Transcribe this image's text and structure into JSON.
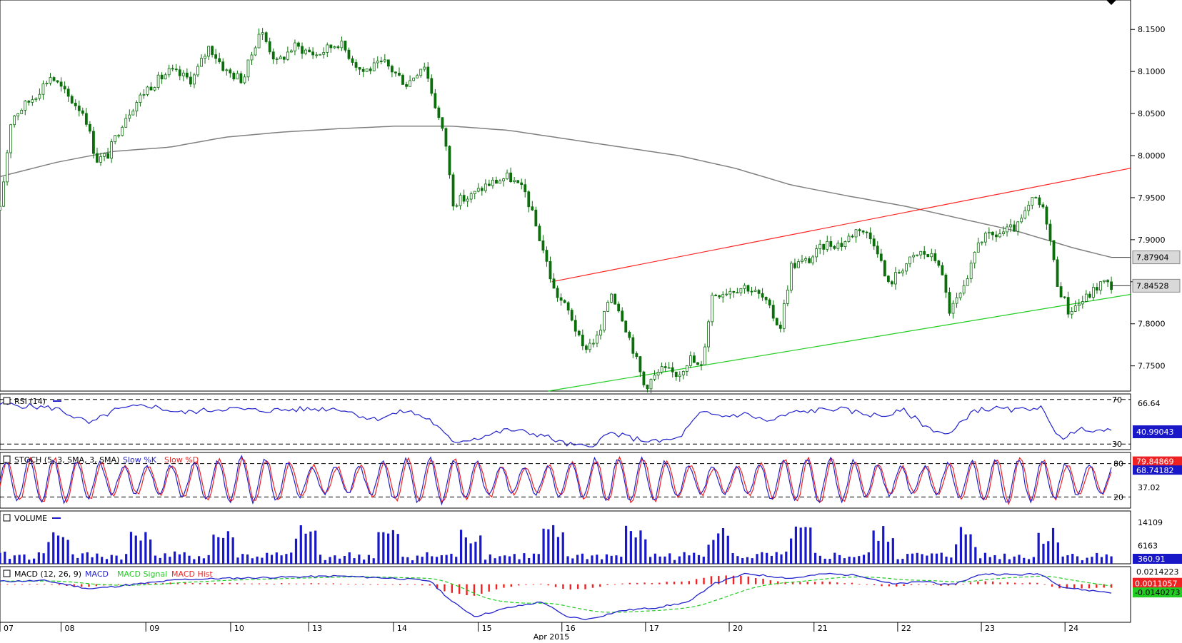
{
  "colors": {
    "candle": "#0a6e0a",
    "ma": "#808080",
    "resistance": "#ff2222",
    "support": "#22cc22",
    "rsi": "#2222cc",
    "stoch_k": "#2222cc",
    "stoch_d": "#ee2222",
    "volume": "#1818c8",
    "macd": "#2222cc",
    "macd_signal": "#22cc22",
    "macd_hist": "#ee2222",
    "grid": "#000000"
  },
  "chart_data": [
    {
      "type": "candlestick",
      "name": "price",
      "ylim": [
        7.72,
        8.185
      ],
      "yticks": [
        "8.1500",
        "8.1000",
        "8.0500",
        "8.0000",
        "7.9500",
        "7.9000",
        "7.8500",
        "7.8000",
        "7.7500"
      ],
      "price_tags": {
        "ma": "7.87904",
        "last": "7.84528"
      },
      "trendlines": {
        "resistance": {
          "from": [
            0.488,
            7.85
          ],
          "to": [
            1.0,
            7.985
          ]
        },
        "support": {
          "from": [
            0.485,
            7.72
          ],
          "to": [
            1.0,
            7.835
          ]
        }
      },
      "anchors": [
        [
          0.0,
          7.935
        ],
        [
          0.01,
          8.045
        ],
        [
          0.03,
          8.07
        ],
        [
          0.045,
          8.095
        ],
        [
          0.06,
          8.07
        ],
        [
          0.075,
          8.05
        ],
        [
          0.085,
          7.995
        ],
        [
          0.095,
          8.0
        ],
        [
          0.11,
          8.045
        ],
        [
          0.13,
          8.08
        ],
        [
          0.15,
          8.1
        ],
        [
          0.17,
          8.09
        ],
        [
          0.185,
          8.13
        ],
        [
          0.2,
          8.1
        ],
        [
          0.215,
          8.09
        ],
        [
          0.23,
          8.15
        ],
        [
          0.245,
          8.11
        ],
        [
          0.26,
          8.13
        ],
        [
          0.28,
          8.12
        ],
        [
          0.3,
          8.135
        ],
        [
          0.32,
          8.1
        ],
        [
          0.34,
          8.11
        ],
        [
          0.36,
          8.085
        ],
        [
          0.375,
          8.11
        ],
        [
          0.385,
          8.06
        ],
        [
          0.395,
          8.01
        ],
        [
          0.4,
          7.945
        ],
        [
          0.415,
          7.95
        ],
        [
          0.43,
          7.965
        ],
        [
          0.45,
          7.975
        ],
        [
          0.465,
          7.955
        ],
        [
          0.48,
          7.89
        ],
        [
          0.49,
          7.84
        ],
        [
          0.505,
          7.81
        ],
        [
          0.515,
          7.77
        ],
        [
          0.53,
          7.785
        ],
        [
          0.54,
          7.84
        ],
        [
          0.55,
          7.81
        ],
        [
          0.56,
          7.77
        ],
        [
          0.57,
          7.725
        ],
        [
          0.585,
          7.745
        ],
        [
          0.6,
          7.74
        ],
        [
          0.61,
          7.76
        ],
        [
          0.62,
          7.745
        ],
        [
          0.63,
          7.835
        ],
        [
          0.645,
          7.84
        ],
        [
          0.66,
          7.845
        ],
        [
          0.675,
          7.83
        ],
        [
          0.69,
          7.795
        ],
        [
          0.7,
          7.87
        ],
        [
          0.715,
          7.875
        ],
        [
          0.73,
          7.895
        ],
        [
          0.745,
          7.895
        ],
        [
          0.76,
          7.915
        ],
        [
          0.775,
          7.895
        ],
        [
          0.785,
          7.845
        ],
        [
          0.8,
          7.87
        ],
        [
          0.815,
          7.885
        ],
        [
          0.83,
          7.875
        ],
        [
          0.84,
          7.815
        ],
        [
          0.855,
          7.845
        ],
        [
          0.865,
          7.9
        ],
        [
          0.88,
          7.905
        ],
        [
          0.9,
          7.915
        ],
        [
          0.915,
          7.95
        ],
        [
          0.925,
          7.93
        ],
        [
          0.935,
          7.85
        ],
        [
          0.945,
          7.815
        ],
        [
          0.96,
          7.83
        ],
        [
          0.975,
          7.85
        ],
        [
          0.983,
          7.845
        ]
      ],
      "ma_anchors": [
        [
          0.0,
          7.975
        ],
        [
          0.05,
          7.992
        ],
        [
          0.1,
          8.005
        ],
        [
          0.15,
          8.01
        ],
        [
          0.2,
          8.022
        ],
        [
          0.25,
          8.028
        ],
        [
          0.3,
          8.032
        ],
        [
          0.35,
          8.035
        ],
        [
          0.4,
          8.035
        ],
        [
          0.45,
          8.03
        ],
        [
          0.5,
          8.02
        ],
        [
          0.55,
          8.01
        ],
        [
          0.6,
          8.0
        ],
        [
          0.65,
          7.985
        ],
        [
          0.7,
          7.965
        ],
        [
          0.75,
          7.952
        ],
        [
          0.8,
          7.94
        ],
        [
          0.85,
          7.925
        ],
        [
          0.9,
          7.91
        ],
        [
          0.95,
          7.89
        ],
        [
          0.983,
          7.879
        ]
      ]
    },
    {
      "type": "line",
      "name": "rsi",
      "title": "RSI (14)",
      "ylim": [
        25,
        75
      ],
      "levels": [
        "70",
        "30"
      ],
      "yticks": [
        "66.64"
      ],
      "last_value": "40.99043",
      "anchors": [
        [
          0.0,
          66
        ],
        [
          0.05,
          62
        ],
        [
          0.08,
          48
        ],
        [
          0.1,
          60
        ],
        [
          0.13,
          65
        ],
        [
          0.16,
          58
        ],
        [
          0.2,
          62
        ],
        [
          0.23,
          60
        ],
        [
          0.26,
          61
        ],
        [
          0.3,
          62
        ],
        [
          0.33,
          52
        ],
        [
          0.36,
          60
        ],
        [
          0.38,
          52
        ],
        [
          0.4,
          32
        ],
        [
          0.42,
          35
        ],
        [
          0.45,
          43
        ],
        [
          0.48,
          38
        ],
        [
          0.5,
          30
        ],
        [
          0.52,
          27
        ],
        [
          0.54,
          40
        ],
        [
          0.56,
          35
        ],
        [
          0.58,
          32
        ],
        [
          0.6,
          35
        ],
        [
          0.62,
          58
        ],
        [
          0.64,
          55
        ],
        [
          0.66,
          57
        ],
        [
          0.68,
          50
        ],
        [
          0.7,
          58
        ],
        [
          0.72,
          60
        ],
        [
          0.74,
          62
        ],
        [
          0.76,
          58
        ],
        [
          0.78,
          55
        ],
        [
          0.8,
          60
        ],
        [
          0.82,
          45
        ],
        [
          0.84,
          38
        ],
        [
          0.86,
          60
        ],
        [
          0.88,
          62
        ],
        [
          0.9,
          60
        ],
        [
          0.92,
          64
        ],
        [
          0.93,
          45
        ],
        [
          0.94,
          36
        ],
        [
          0.96,
          44
        ],
        [
          0.983,
          41
        ]
      ]
    },
    {
      "type": "line",
      "name": "stochastic",
      "title": "STOCH (5, 3, SMA, 3, SMA)",
      "legend": [
        "Slow %K",
        "Slow %D"
      ],
      "ylim": [
        0,
        100
      ],
      "levels": [
        "80",
        "20"
      ],
      "yticks": [
        "37.02"
      ],
      "last_values": [
        "79.84869",
        "68.74182"
      ]
    },
    {
      "type": "bar",
      "name": "volume",
      "title": "VOLUME",
      "ylim": [
        0,
        18000
      ],
      "yticks": [
        "14109",
        "6163"
      ],
      "last_value": "360.91"
    },
    {
      "type": "line",
      "name": "macd",
      "title": "MACD (12, 26, 9)",
      "legend": [
        "MACD",
        "MACD Signal",
        "MACD Hist"
      ],
      "ylim": [
        -0.065,
        0.03
      ],
      "yticks": [
        "0.0214223"
      ],
      "last_values": [
        "0.0011057",
        "-0.0140273"
      ],
      "anchors": [
        [
          0.0,
          0.005
        ],
        [
          0.04,
          0.006
        ],
        [
          0.08,
          -0.008
        ],
        [
          0.12,
          0.0
        ],
        [
          0.16,
          0.008
        ],
        [
          0.2,
          0.01
        ],
        [
          0.25,
          0.012
        ],
        [
          0.3,
          0.014
        ],
        [
          0.35,
          0.01
        ],
        [
          0.38,
          0.006
        ],
        [
          0.4,
          -0.03
        ],
        [
          0.42,
          -0.055
        ],
        [
          0.45,
          -0.04
        ],
        [
          0.48,
          -0.03
        ],
        [
          0.5,
          -0.055
        ],
        [
          0.52,
          -0.06
        ],
        [
          0.55,
          -0.045
        ],
        [
          0.58,
          -0.04
        ],
        [
          0.61,
          -0.03
        ],
        [
          0.63,
          0.0
        ],
        [
          0.66,
          0.018
        ],
        [
          0.7,
          0.01
        ],
        [
          0.73,
          0.018
        ],
        [
          0.76,
          0.015
        ],
        [
          0.79,
          0.0
        ],
        [
          0.82,
          0.005
        ],
        [
          0.84,
          -0.002
        ],
        [
          0.87,
          0.018
        ],
        [
          0.9,
          0.016
        ],
        [
          0.92,
          0.018
        ],
        [
          0.94,
          -0.005
        ],
        [
          0.96,
          -0.01
        ],
        [
          0.983,
          -0.014
        ]
      ]
    }
  ],
  "xaxis": {
    "days": [
      "07",
      "08",
      "09",
      "10",
      "13",
      "14",
      "15",
      "16",
      "17",
      "20",
      "21",
      "22",
      "23",
      "24"
    ],
    "month_label": "Apr 2015"
  }
}
